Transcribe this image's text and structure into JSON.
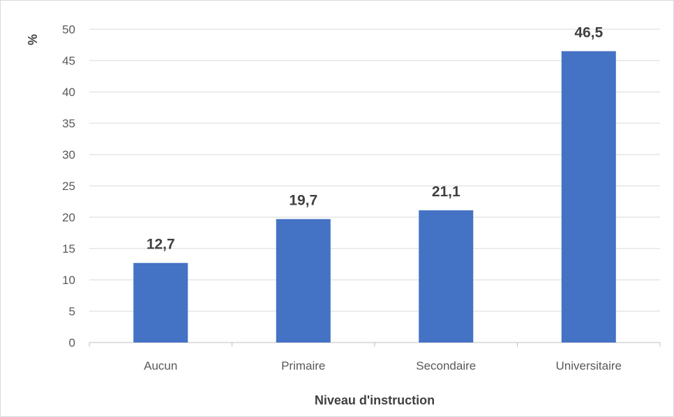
{
  "chart_data": {
    "type": "bar",
    "title": "",
    "xlabel": "Niveau d'instruction",
    "ylabel": "%",
    "categories": [
      "Aucun",
      "Primaire",
      "Secondaire",
      "Universitaire"
    ],
    "values": [
      12.7,
      19.7,
      21.1,
      46.5
    ],
    "value_labels": [
      "12,7",
      "19,7",
      "21,1",
      "46,5"
    ],
    "ylim": [
      0,
      50
    ],
    "yticks": [
      0,
      5,
      10,
      15,
      20,
      25,
      30,
      35,
      40,
      45,
      50
    ],
    "grid": true,
    "legend": "none",
    "colors": {
      "bar": "#4472C4",
      "grid": "#d9d9d9",
      "axis": "#bfbfbf"
    }
  }
}
